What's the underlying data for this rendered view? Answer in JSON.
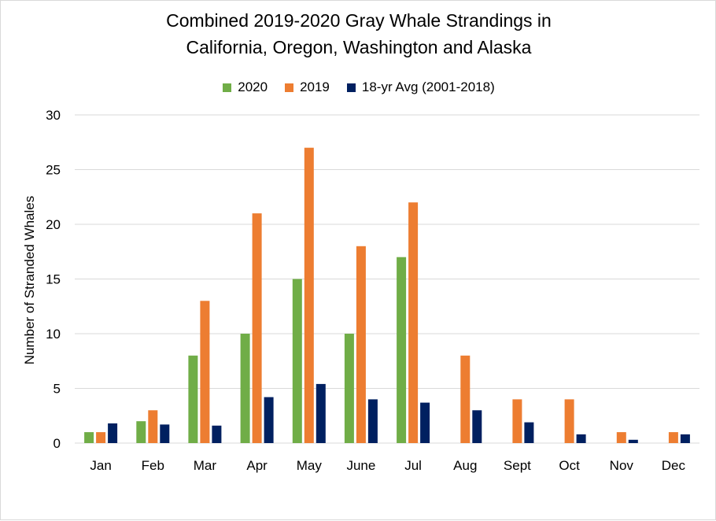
{
  "chart_data": {
    "type": "bar",
    "title_lines": [
      "Combined 2019-2020 Gray Whale Strandings in",
      "California, Oregon, Washington and Alaska"
    ],
    "xlabel": "",
    "ylabel": "Number of Stranded Whales",
    "ylim": [
      0,
      30
    ],
    "yticks": [
      0,
      5,
      10,
      15,
      20,
      25,
      30
    ],
    "grid": true,
    "legend_position": "top",
    "categories": [
      "Jan",
      "Feb",
      "Mar",
      "Apr",
      "May",
      "June",
      "Jul",
      "Aug",
      "Sept",
      "Oct",
      "Nov",
      "Dec"
    ],
    "series": [
      {
        "name": "2020",
        "color": "#70ad47",
        "values": [
          1,
          2,
          8,
          10,
          15,
          10,
          17,
          null,
          null,
          null,
          null,
          null
        ]
      },
      {
        "name": "2019",
        "color": "#ed7d31",
        "values": [
          1,
          3,
          13,
          21,
          27,
          18,
          22,
          8,
          4,
          4,
          1,
          1
        ]
      },
      {
        "name": "18-yr Avg (2001-2018)",
        "color": "#002060",
        "values": [
          1.8,
          1.7,
          1.6,
          4.2,
          5.4,
          4.0,
          3.7,
          3.0,
          1.9,
          0.8,
          0.3,
          0.8
        ]
      }
    ]
  }
}
